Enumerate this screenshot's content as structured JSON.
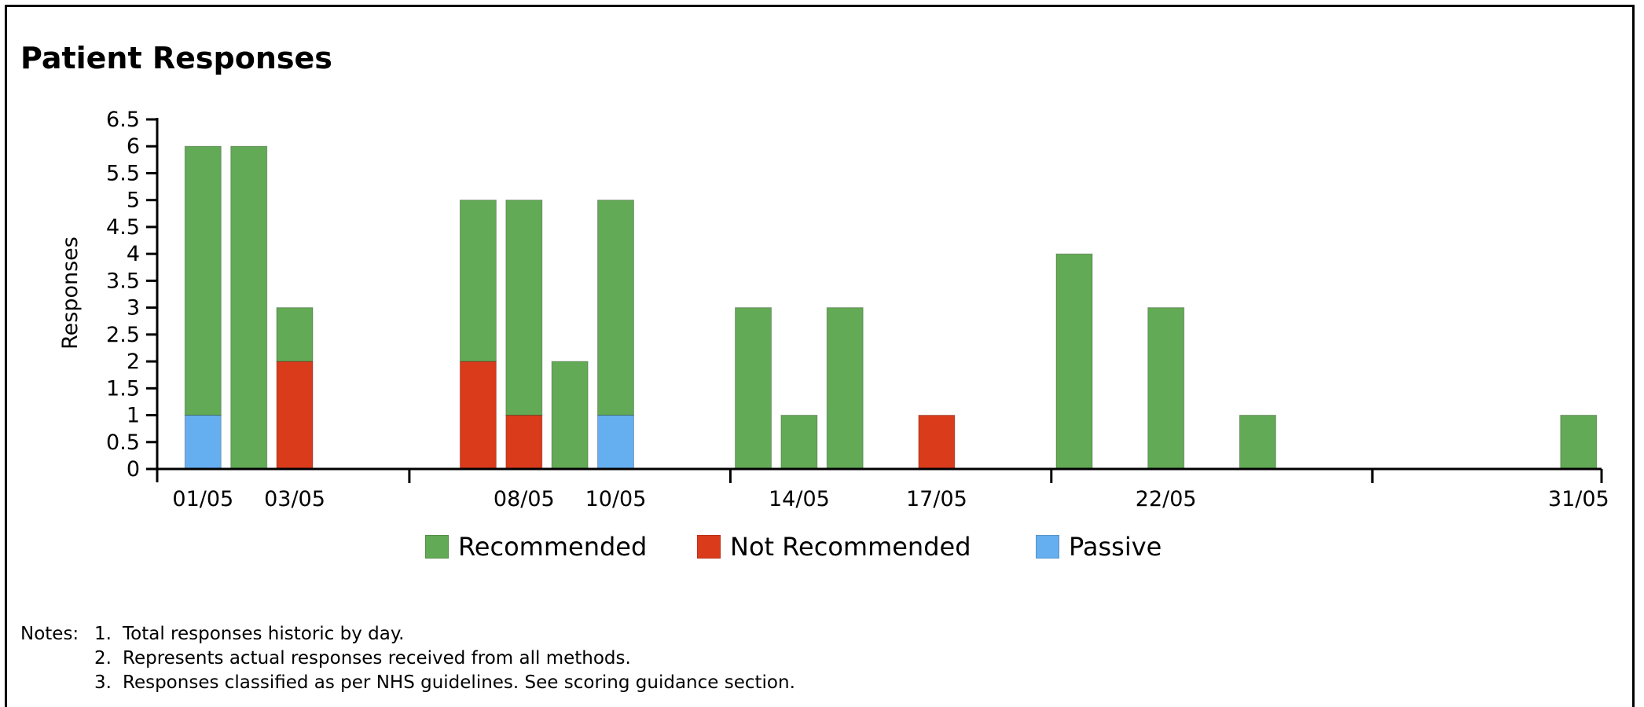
{
  "title": "Patient Responses",
  "colors": {
    "recommended": "#62aa55",
    "not_recommended": "#da3b1b",
    "passive": "#65aeef"
  },
  "chart_data": {
    "type": "bar",
    "stacked": true,
    "title": "Patient Responses",
    "xlabel": "",
    "ylabel": "Responses",
    "ylim": [
      0,
      6.5
    ],
    "yticks": [
      "0",
      "0.5",
      "1",
      "1.5",
      "2",
      "2.5",
      "3",
      "3.5",
      "4",
      "4.5",
      "5",
      "5.5",
      "6",
      "6.5"
    ],
    "x_axis": "date",
    "xlim": [
      "2024-04-30",
      "2024-05-31"
    ],
    "xtick_labels": [
      {
        "date": "2024-05-01",
        "label": "01/05"
      },
      {
        "date": "2024-05-03",
        "label": "03/05"
      },
      {
        "date": "2024-05-08",
        "label": "08/05"
      },
      {
        "date": "2024-05-10",
        "label": "10/05"
      },
      {
        "date": "2024-05-14",
        "label": "14/05"
      },
      {
        "date": "2024-05-17",
        "label": "17/05"
      },
      {
        "date": "2024-05-22",
        "label": "22/05"
      },
      {
        "date": "2024-05-31",
        "label": "31/05"
      }
    ],
    "legend_position": "bottom",
    "grid": false,
    "x": [
      "2024-05-01",
      "2024-05-02",
      "2024-05-03",
      "2024-05-07",
      "2024-05-08",
      "2024-05-09",
      "2024-05-10",
      "2024-05-13",
      "2024-05-14",
      "2024-05-15",
      "2024-05-17",
      "2024-05-20",
      "2024-05-22",
      "2024-05-24",
      "2024-05-31"
    ],
    "series": [
      {
        "name": "Passive",
        "key": "passive",
        "values": [
          1,
          0,
          0,
          0,
          0,
          0,
          1,
          0,
          0,
          0,
          0,
          0,
          0,
          0,
          0
        ]
      },
      {
        "name": "Not Recommended",
        "key": "not_recommended",
        "values": [
          0,
          0,
          2,
          2,
          1,
          0,
          0,
          0,
          0,
          0,
          1,
          0,
          0,
          0,
          0
        ]
      },
      {
        "name": "Recommended",
        "key": "recommended",
        "values": [
          5,
          6,
          1,
          3,
          4,
          2,
          4,
          3,
          1,
          3,
          0,
          4,
          3,
          1,
          1
        ]
      }
    ],
    "legend": [
      {
        "name": "Recommended",
        "key": "recommended"
      },
      {
        "name": "Not Recommended",
        "key": "not_recommended"
      },
      {
        "name": "Passive",
        "key": "passive"
      }
    ]
  },
  "notes": {
    "prefix": "Notes:",
    "items": [
      {
        "num": "1.",
        "text": "Total responses historic by day."
      },
      {
        "num": "2.",
        "text": "Represents actual responses received from all methods."
      },
      {
        "num": "3.",
        "text": "Responses classified as per NHS guidelines. See scoring guidance section."
      }
    ]
  }
}
